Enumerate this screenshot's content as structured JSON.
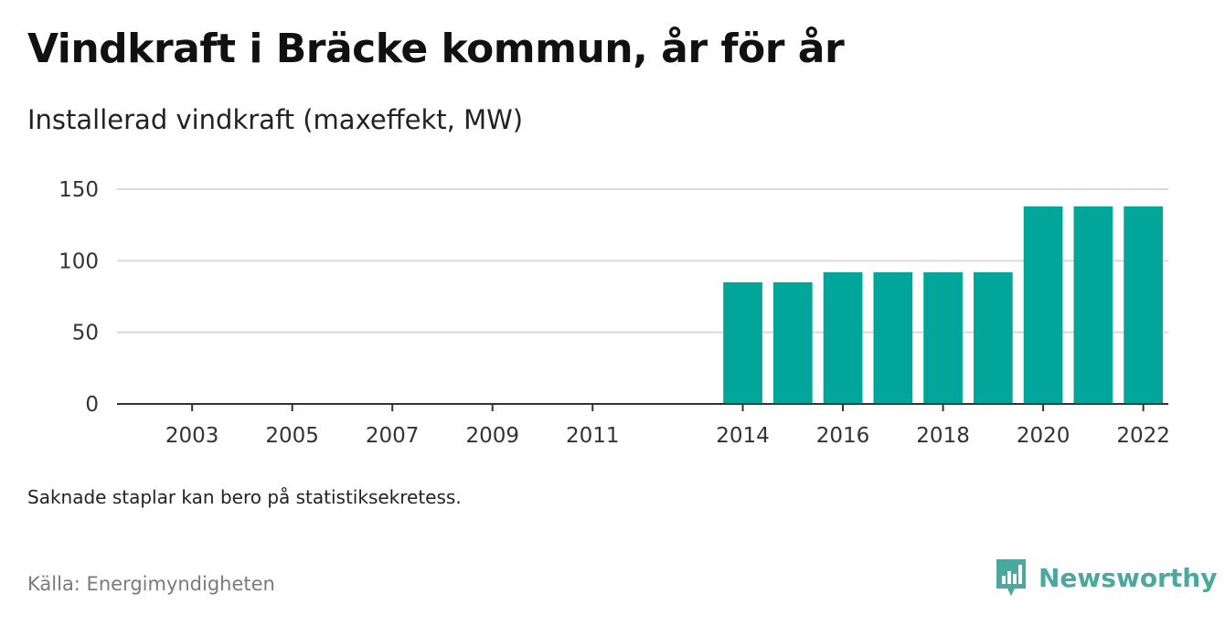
{
  "title": "Vindkraft i Bräcke kommun, år för år",
  "subtitle": "Installerad vindkraft (maxeffekt, MW)",
  "note": "Saknade staplar kan bero på statistiksekretess.",
  "source": "Källa: Energimyndigheten",
  "brand": {
    "name": "Newsworthy",
    "icon": "newsworthy-logo-icon",
    "color": "#4aa89e"
  },
  "chart_data": {
    "type": "bar",
    "categories": [
      "2002",
      "2003",
      "2004",
      "2005",
      "2006",
      "2007",
      "2008",
      "2009",
      "2010",
      "2011",
      "2012",
      "2013",
      "2014",
      "2015",
      "2016",
      "2017",
      "2018",
      "2019",
      "2020",
      "2021",
      "2022"
    ],
    "values": [
      null,
      null,
      null,
      null,
      null,
      null,
      null,
      null,
      null,
      null,
      null,
      null,
      85,
      85,
      92,
      92,
      92,
      92,
      138,
      138,
      138
    ],
    "x_tick_labels": [
      "2003",
      "2005",
      "2007",
      "2009",
      "2011",
      "2014",
      "2016",
      "2018",
      "2020",
      "2022"
    ],
    "y_ticks": [
      0,
      50,
      100,
      150
    ],
    "ylim": [
      0,
      150
    ],
    "grid": true,
    "bar_color": "#00a699"
  }
}
